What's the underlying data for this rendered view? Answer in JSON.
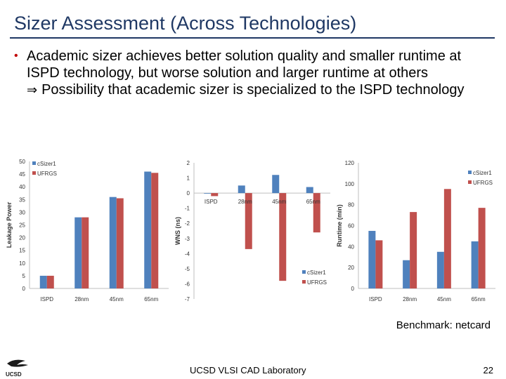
{
  "slide": {
    "title": "Sizer Assessment (Across Technologies)",
    "bullet_main": "Academic sizer achieves better solution quality and smaller runtime at ISPD technology, but worse solution and larger runtime at others",
    "bullet_sub": "Possibility that academic sizer is specialized to the ISPD technology",
    "caption": "Benchmark: netcard",
    "footer": "UCSD VLSI CAD Laboratory",
    "page_number": "22",
    "logo_text": "UCSD"
  },
  "colors": {
    "title": "#1f3864",
    "csizer": "#4f81bd",
    "ufrgs": "#c0504d"
  },
  "chart_data": [
    {
      "type": "bar",
      "categories": [
        "ISPD",
        "28nm",
        "45nm",
        "65nm"
      ],
      "series": [
        {
          "name": "cSizer1",
          "values": [
            5,
            28,
            36,
            46
          ]
        },
        {
          "name": "UFRGS",
          "values": [
            5,
            28,
            35.5,
            45.5
          ]
        }
      ],
      "ylabel": "Leakage Power",
      "ylim": [
        0,
        50
      ],
      "yticks": [
        0,
        5,
        10,
        15,
        20,
        25,
        30,
        35,
        40,
        45,
        50
      ],
      "legend": "top-left",
      "grid": false
    },
    {
      "type": "bar",
      "categories": [
        "ISPD",
        "28nm",
        "45nm",
        "65nm"
      ],
      "series": [
        {
          "name": "cSizer1",
          "values": [
            0,
            0.5,
            1.2,
            0.4
          ]
        },
        {
          "name": "UFRGS",
          "values": [
            -0.2,
            -3.7,
            -5.8,
            -2.6
          ]
        }
      ],
      "ylabel": "WNS (ns)",
      "ylim": [
        -7,
        2
      ],
      "yticks": [
        2,
        1,
        0,
        -1,
        -2,
        -3,
        -4,
        -5,
        -6,
        -7
      ],
      "legend": "bottom-right",
      "grid": false
    },
    {
      "type": "bar",
      "categories": [
        "ISPD",
        "28nm",
        "45nm",
        "65nm"
      ],
      "series": [
        {
          "name": "cSizer1",
          "values": [
            55,
            27,
            35,
            45
          ]
        },
        {
          "name": "UFRGS",
          "values": [
            46,
            73,
            95,
            77
          ]
        }
      ],
      "ylabel": "Runtime (min)",
      "ylim": [
        0,
        120
      ],
      "yticks": [
        0,
        20,
        40,
        60,
        80,
        100,
        120
      ],
      "legend": "top-right",
      "grid": false
    }
  ]
}
